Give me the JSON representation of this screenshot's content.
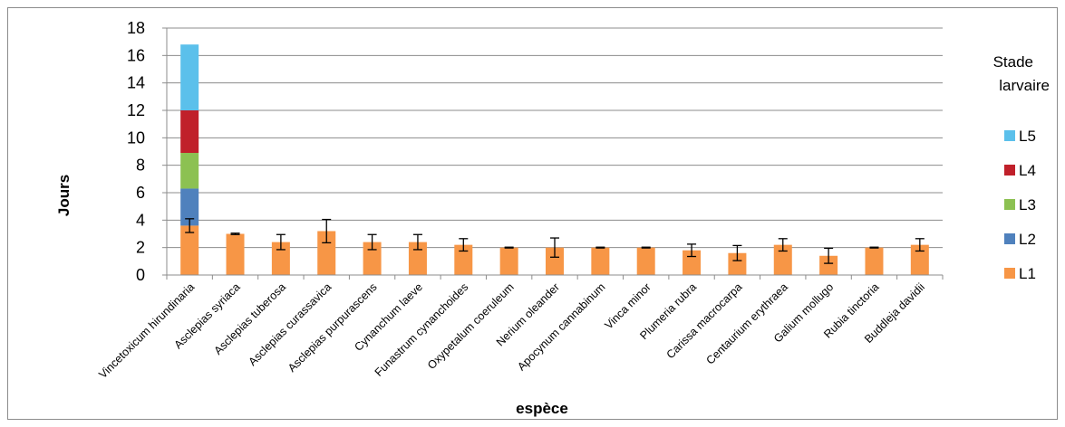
{
  "chart_data": {
    "type": "bar",
    "stacked": true,
    "title": "",
    "xlabel": "espèce",
    "ylabel": "Jours",
    "ylim": [
      0,
      18
    ],
    "yticks": [
      0,
      2,
      4,
      6,
      8,
      10,
      12,
      14,
      16,
      18
    ],
    "grid": true,
    "legend": {
      "title_lines": [
        "Stade",
        "larvaire"
      ],
      "placement": "right",
      "entries": [
        "L5",
        "L4",
        "L3",
        "L2",
        "L1"
      ]
    },
    "categories": [
      "Vincetoxicum hirundinaria",
      "Asclepias syriaca",
      "Asclepias tuberosa",
      "Asclepias curassavica",
      "Asclepias purpurascens",
      "Cynanchum laeve",
      "Funastrum cynanchoides",
      "Oxypetalum coeruleum",
      "Nerium oleander",
      "Apocynum cannabinum",
      "Vinca minor",
      "Plumeria rubra",
      "Carissa macrocarpa",
      "Centaurium erythraea",
      "Galium mollugo",
      "Rubia tinctoria",
      "Buddleja davidii"
    ],
    "series": [
      {
        "name": "L1",
        "color": "#f79646",
        "values": [
          3.6,
          3.0,
          2.4,
          3.2,
          2.4,
          2.4,
          2.2,
          2.0,
          2.0,
          2.0,
          2.0,
          1.8,
          1.6,
          2.2,
          1.4,
          2.0,
          2.2
        ],
        "error": [
          0.5,
          0.05,
          0.55,
          0.85,
          0.55,
          0.55,
          0.45,
          0.03,
          0.7,
          0.03,
          0.03,
          0.45,
          0.55,
          0.45,
          0.55,
          0.03,
          0.45
        ]
      },
      {
        "name": "L2",
        "color": "#4f81bd",
        "values": [
          2.7,
          0,
          0,
          0,
          0,
          0,
          0,
          0,
          0,
          0,
          0,
          0,
          0,
          0,
          0,
          0,
          0
        ]
      },
      {
        "name": "L3",
        "color": "#8cc152",
        "values": [
          2.6,
          0,
          0,
          0,
          0,
          0,
          0,
          0,
          0,
          0,
          0,
          0,
          0,
          0,
          0,
          0,
          0
        ]
      },
      {
        "name": "L4",
        "color": "#c0202a",
        "values": [
          3.1,
          0,
          0,
          0,
          0,
          0,
          0,
          0,
          0,
          0,
          0,
          0,
          0,
          0,
          0,
          0,
          0
        ]
      },
      {
        "name": "L5",
        "color": "#5bc0eb",
        "values": [
          4.8,
          0,
          0,
          0,
          0,
          0,
          0,
          0,
          0,
          0,
          0,
          0,
          0,
          0,
          0,
          0,
          0
        ]
      }
    ]
  }
}
